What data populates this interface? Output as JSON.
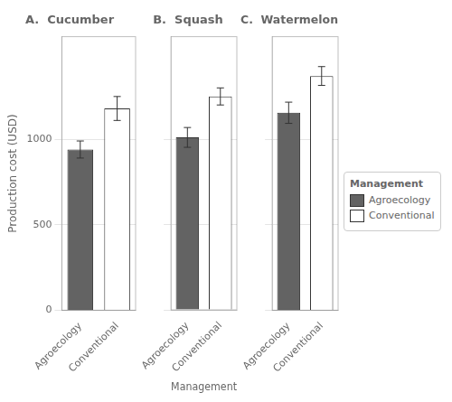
{
  "chart_data": [
    {
      "type": "bar",
      "title": "A.  Cucumber",
      "ylabel": "Production cost (USD)",
      "categories": [
        "Agroecology",
        "Conventional"
      ],
      "series": [
        {
          "name": "Agroecology",
          "color": "#636363",
          "values": [
            940,
            null
          ],
          "errors": [
            50,
            null
          ]
        },
        {
          "name": "Conventional",
          "color": "#ffffff",
          "values": [
            null,
            1180
          ],
          "errors": [
            null,
            70
          ]
        }
      ],
      "ylim": [
        0,
        1600
      ],
      "yticks": [
        0,
        500,
        1000
      ],
      "grid": true
    },
    {
      "type": "bar",
      "title": "B.  Squash",
      "xlabel": "Management",
      "categories": [
        "Agroecology",
        "Conventional"
      ],
      "series": [
        {
          "name": "Agroecology",
          "color": "#636363",
          "values": [
            1010,
            null
          ],
          "errors": [
            58,
            null
          ]
        },
        {
          "name": "Conventional",
          "color": "#ffffff",
          "values": [
            null,
            1250
          ],
          "errors": [
            null,
            50
          ]
        }
      ],
      "ylim": [
        0,
        1600
      ],
      "yticks": [
        0,
        500,
        1000
      ],
      "grid": true,
      "tick_labels": "x"
    },
    {
      "type": "bar",
      "title": "C.  Watermelon",
      "categories": [
        "Agroecology",
        "Conventional"
      ],
      "series": [
        {
          "name": "Agroecology",
          "color": "#636363",
          "values": [
            1155,
            null
          ],
          "errors": [
            62,
            null
          ]
        },
        {
          "name": "Conventional",
          "color": "#ffffff",
          "values": [
            null,
            1370
          ],
          "errors": [
            null,
            55
          ]
        }
      ],
      "ylim": [
        0,
        1600
      ],
      "yticks": [
        0,
        500,
        1000
      ],
      "grid": true,
      "tick_labels": "x",
      "legend": "right",
      "legend_title": "Management"
    }
  ]
}
